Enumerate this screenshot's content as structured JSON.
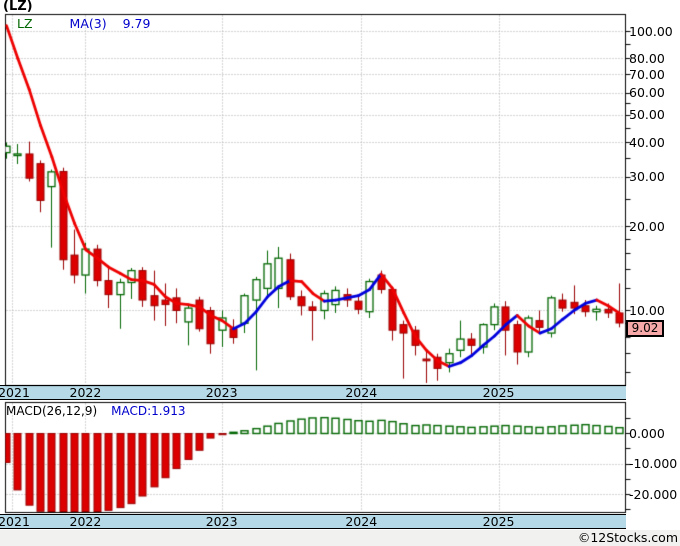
{
  "window_title": "(LZ)",
  "price_panel": {
    "legend_symbol": "LZ",
    "legend_ma_label": "MA(3)",
    "legend_ma_value": "9.79",
    "last_price_badge": "9.02"
  },
  "macd_panel": {
    "legend_label": "MACD(26,12,9)",
    "legend_value": "MACD:1.913"
  },
  "watermark": "©12Stocks.com",
  "colors": {
    "up_green": "#006600",
    "down_red": "#dd0000",
    "down_red_dark": "#990000",
    "ma_up_blue": "#0000dd",
    "ma_down_red": "#ee0000",
    "grid_gray": "#a9a9a9",
    "axis_band_bg": "#b5d9e6",
    "badge_bg": "#f7a8a8",
    "footer_bg": "#f1f1ef"
  },
  "chart_data": [
    {
      "type": "candlestick",
      "name": "LZ monthly price",
      "start": "2021-06",
      "interval": "1 month",
      "scale": "log",
      "last_close": 9.02,
      "candles_ohlc": [
        [
          36.8,
          40.0,
          35.0,
          38.8
        ],
        [
          36.0,
          39.5,
          33.5,
          36.4
        ],
        [
          36.4,
          40.3,
          29.0,
          29.8
        ],
        [
          33.6,
          34.5,
          22.5,
          24.8
        ],
        [
          27.8,
          32.0,
          16.8,
          31.4
        ],
        [
          31.5,
          32.5,
          14.0,
          15.2
        ],
        [
          15.8,
          19.5,
          12.5,
          13.4
        ],
        [
          13.4,
          17.5,
          11.5,
          16.6
        ],
        [
          16.6,
          17.2,
          12.2,
          12.8
        ],
        [
          12.8,
          14.5,
          10.2,
          11.4
        ],
        [
          11.4,
          13.0,
          8.6,
          12.6
        ],
        [
          12.6,
          14.2,
          11.0,
          13.9
        ],
        [
          13.9,
          14.3,
          10.3,
          10.9
        ],
        [
          11.3,
          13.9,
          9.2,
          10.4
        ],
        [
          10.9,
          12.5,
          8.8,
          10.5
        ],
        [
          11.1,
          12.0,
          9.0,
          10.0
        ],
        [
          9.1,
          10.4,
          7.5,
          10.2
        ],
        [
          10.9,
          11.2,
          8.4,
          8.6
        ],
        [
          10.0,
          10.3,
          7.0,
          7.6
        ],
        [
          8.5,
          10.0,
          7.4,
          9.4
        ],
        [
          8.6,
          9.3,
          7.6,
          8.0
        ],
        [
          9.0,
          11.5,
          8.3,
          11.3
        ],
        [
          10.9,
          13.2,
          6.1,
          12.9
        ],
        [
          12.0,
          16.4,
          11.0,
          14.7
        ],
        [
          12.0,
          16.9,
          10.2,
          15.4
        ],
        [
          15.2,
          16.0,
          10.9,
          11.2
        ],
        [
          11.2,
          11.8,
          9.6,
          10.4
        ],
        [
          10.3,
          10.8,
          7.8,
          10.0
        ],
        [
          10.0,
          11.8,
          9.3,
          11.5
        ],
        [
          10.5,
          12.2,
          9.8,
          11.8
        ],
        [
          11.4,
          12.0,
          10.3,
          10.9
        ],
        [
          10.8,
          11.3,
          9.7,
          10.1
        ],
        [
          9.9,
          13.0,
          9.4,
          12.7
        ],
        [
          13.4,
          13.9,
          11.5,
          11.9
        ],
        [
          11.9,
          12.2,
          7.8,
          8.5
        ],
        [
          8.9,
          9.2,
          5.7,
          8.3
        ],
        [
          8.5,
          8.8,
          6.9,
          7.5
        ],
        [
          6.7,
          7.2,
          5.5,
          6.6
        ],
        [
          6.8,
          7.0,
          5.6,
          6.2
        ],
        [
          6.5,
          7.3,
          6.0,
          7.0
        ],
        [
          7.2,
          9.2,
          6.8,
          7.9
        ],
        [
          7.9,
          8.3,
          6.9,
          7.5
        ],
        [
          7.4,
          9.0,
          7.0,
          8.9
        ],
        [
          8.9,
          10.6,
          8.5,
          10.3
        ],
        [
          10.3,
          10.8,
          6.9,
          8.5
        ],
        [
          8.9,
          9.2,
          6.4,
          7.1
        ],
        [
          7.1,
          9.6,
          6.8,
          9.4
        ],
        [
          9.2,
          10.0,
          8.4,
          8.7
        ],
        [
          8.3,
          11.3,
          8.0,
          11.1
        ],
        [
          10.9,
          11.5,
          9.9,
          10.2
        ],
        [
          10.7,
          12.3,
          9.7,
          10.2
        ],
        [
          10.4,
          10.9,
          9.5,
          9.9
        ],
        [
          9.9,
          10.4,
          9.2,
          10.1
        ],
        [
          10.1,
          10.6,
          9.4,
          9.8
        ],
        [
          9.8,
          12.5,
          8.7,
          9.02
        ]
      ],
      "ma3": [
        105,
        80,
        62,
        46,
        35.5,
        26.5,
        20.5,
        16.5,
        15.4,
        14.3,
        13.6,
        12.9,
        12.8,
        12.4,
        11.2,
        10.6,
        10.5,
        10.3,
        9.6,
        9.2,
        8.6,
        9.0,
        9.9,
        11.2,
        12.2,
        12.8,
        12.7,
        11.5,
        10.8,
        10.9,
        11.1,
        11.3,
        11.9,
        13.5,
        12.0,
        9.8,
        8.1,
        7.2,
        6.6,
        6.3,
        6.5,
        6.9,
        7.5,
        8.1,
        8.9,
        9.6,
        8.8,
        8.3,
        8.6,
        9.3,
        10.0,
        10.6,
        10.9,
        10.4,
        9.79
      ],
      "y_axis": {
        "labels": [
          {
            "value": 100,
            "label": "100.00"
          },
          {
            "value": 80,
            "label": "80.00"
          },
          {
            "value": 70,
            "label": "70.00"
          },
          {
            "value": 60,
            "label": "60.00"
          },
          {
            "value": 50,
            "label": "50.00"
          },
          {
            "value": 40,
            "label": "40.00"
          },
          {
            "value": 30,
            "label": "30.00"
          },
          {
            "value": 20,
            "label": "20.00"
          },
          {
            "value": 10,
            "label": "10.00"
          }
        ],
        "minor_ticks": [
          90,
          55,
          45,
          35,
          25,
          18,
          16,
          14,
          12,
          9,
          8,
          7,
          6
        ]
      },
      "x_axis": {
        "years": [
          {
            "label": "2021",
            "i": 0.5
          },
          {
            "label": "2022",
            "i": 7
          },
          {
            "label": "2023",
            "i": 19
          },
          {
            "label": "2024",
            "i": 31.3
          },
          {
            "label": "2025",
            "i": 43.4
          }
        ]
      }
    },
    {
      "type": "bar",
      "name": "MACD(26,12,9) histogram",
      "last_value": 1.913,
      "values": [
        -9.5,
        -18.5,
        -23.5,
        -25.5,
        -26.3,
        -26.8,
        -26.3,
        -26.8,
        -26.3,
        -25.2,
        -24.3,
        -23.0,
        -20.5,
        -17.5,
        -14.5,
        -11.5,
        -8.5,
        -5.5,
        -1.5,
        -0.4,
        0.3,
        0.9,
        1.6,
        2.4,
        3.3,
        4.1,
        4.7,
        5.1,
        5.2,
        5.0,
        4.6,
        4.2,
        4.0,
        4.3,
        3.9,
        3.2,
        2.6,
        2.8,
        2.6,
        2.4,
        2.2,
        2.0,
        2.2,
        2.4,
        2.6,
        2.4,
        2.2,
        2.0,
        2.2,
        2.5,
        2.7,
        2.9,
        2.6,
        2.3,
        1.913
      ],
      "y_axis": {
        "labels": [
          {
            "value": 0,
            "label": "0.000"
          },
          {
            "value": -10,
            "label": "-10.000"
          },
          {
            "value": -20,
            "label": "-20.000"
          }
        ],
        "ticks": [
          5,
          0,
          -5,
          -10,
          -15,
          -20,
          -25
        ]
      }
    }
  ]
}
